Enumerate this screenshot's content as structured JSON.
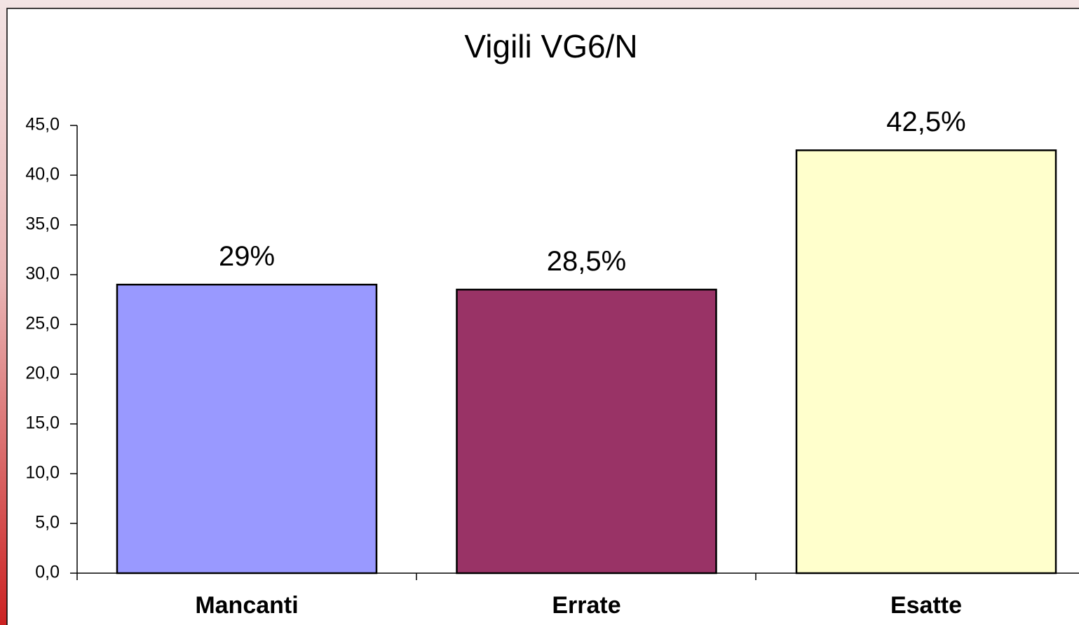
{
  "chart_data": {
    "type": "bar",
    "title": "Vigili VG6/N",
    "categories": [
      "Mancanti",
      "Errate",
      "Esatte"
    ],
    "values": [
      29,
      28.5,
      42.5
    ],
    "value_labels": [
      "29%",
      "28,5%",
      "42,5%"
    ],
    "colors": [
      "#9999ff",
      "#993366",
      "#ffffcc"
    ],
    "ylim": [
      0,
      45
    ],
    "yticks": [
      {
        "value": 0,
        "label": "0,0"
      },
      {
        "value": 5,
        "label": "5,0"
      },
      {
        "value": 10,
        "label": "10,0"
      },
      {
        "value": 15,
        "label": "15,0"
      },
      {
        "value": 20,
        "label": "20,0"
      },
      {
        "value": 25,
        "label": "25,0"
      },
      {
        "value": 30,
        "label": "30,0"
      },
      {
        "value": 35,
        "label": "35,0"
      },
      {
        "value": 40,
        "label": "40,0"
      },
      {
        "value": 45,
        "label": "45,0"
      }
    ],
    "grid": false
  }
}
